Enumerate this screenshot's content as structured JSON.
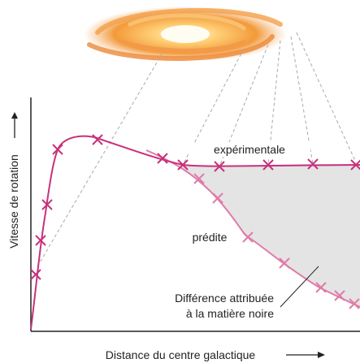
{
  "labels": {
    "experimental": "expérimentale",
    "predicted": "prédite",
    "difference_line1": "Différence attribuée",
    "difference_line2": "à la matière noire",
    "y_axis": "Vitesse de rotation",
    "x_axis": "Distance du centre galactique"
  }
}
